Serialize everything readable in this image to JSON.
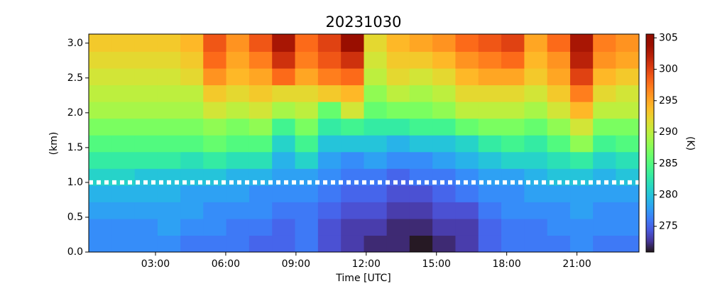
{
  "chart_data": {
    "type": "heatmap",
    "title": "20231030",
    "xlabel": "Time [UTC]",
    "ylabel": "(km)",
    "colorbar_label": "(K)",
    "colormap": "turbo",
    "x": [
      0.64,
      1.62,
      2.6,
      3.58,
      4.55,
      5.53,
      6.51,
      7.49,
      8.47,
      9.45,
      10.43,
      11.41,
      12.39,
      13.36,
      14.34,
      15.32,
      16.3,
      17.28,
      18.26,
      19.24,
      20.22,
      21.2,
      22.17,
      23.15
    ],
    "y": [
      0.12,
      0.36,
      0.6,
      0.84,
      1.08,
      1.32,
      1.56,
      1.8,
      2.04,
      2.28,
      2.52,
      2.76,
      3.0
    ],
    "z": [
      [
        277,
        277,
        277,
        277,
        276,
        276,
        276,
        275,
        275,
        276,
        274,
        273,
        272,
        272,
        271,
        272,
        273,
        275,
        276,
        276,
        276,
        277,
        276,
        276
      ],
      [
        277,
        277,
        277,
        278,
        277,
        277,
        276,
        276,
        275,
        276,
        274,
        273,
        273,
        272,
        272,
        273,
        273,
        275,
        276,
        276,
        277,
        277,
        277,
        277
      ],
      [
        278,
        278,
        278,
        278,
        278,
        277,
        277,
        277,
        276,
        276,
        275,
        274,
        274,
        273,
        273,
        274,
        274,
        276,
        277,
        277,
        277,
        278,
        277,
        277
      ],
      [
        279,
        279,
        279,
        279,
        278,
        278,
        278,
        277,
        277,
        277,
        276,
        275,
        275,
        274,
        274,
        275,
        276,
        277,
        277,
        278,
        278,
        278,
        278,
        278
      ],
      [
        281,
        281,
        280,
        280,
        280,
        280,
        279,
        279,
        278,
        278,
        277,
        276,
        276,
        275,
        276,
        276,
        277,
        278,
        278,
        279,
        280,
        280,
        279,
        280
      ],
      [
        283,
        283,
        283,
        283,
        282,
        283,
        282,
        282,
        279,
        281,
        278,
        277,
        278,
        277,
        277,
        278,
        279,
        280,
        281,
        281,
        282,
        283,
        281,
        282
      ],
      [
        285,
        285,
        285,
        285,
        285,
        286,
        285,
        285,
        281,
        284,
        280,
        280,
        280,
        279,
        280,
        280,
        281,
        283,
        284,
        283,
        285,
        288,
        284,
        285
      ],
      [
        287,
        287,
        287,
        287,
        287,
        288,
        287,
        288,
        284,
        287,
        283,
        284,
        283,
        283,
        284,
        284,
        286,
        287,
        287,
        286,
        288,
        291,
        287,
        287
      ],
      [
        289,
        289,
        289,
        289,
        289,
        291,
        290,
        291,
        289,
        290,
        286,
        291,
        286,
        287,
        287,
        288,
        290,
        290,
        290,
        289,
        291,
        294,
        290,
        290
      ],
      [
        290,
        290,
        290,
        290,
        290,
        293,
        292,
        293,
        292,
        292,
        293,
        294,
        288,
        290,
        289,
        290,
        292,
        292,
        292,
        291,
        293,
        297,
        292,
        291
      ],
      [
        291,
        291,
        291,
        291,
        292,
        296,
        294,
        295,
        298,
        295,
        297,
        298,
        290,
        292,
        291,
        292,
        294,
        295,
        295,
        293,
        295,
        300,
        294,
        293
      ],
      [
        292,
        292,
        292,
        292,
        293,
        298,
        295,
        297,
        301,
        297,
        299,
        301,
        291,
        293,
        293,
        294,
        296,
        297,
        298,
        294,
        296,
        302,
        296,
        295
      ],
      [
        293,
        293,
        293,
        293,
        294,
        299,
        296,
        299,
        303,
        298,
        300,
        304,
        292,
        294,
        295,
        296,
        298,
        299,
        300,
        295,
        298,
        303,
        297,
        296
      ]
    ],
    "xlim": [
      0.15,
      23.65
    ],
    "ylim": [
      0,
      3.13
    ],
    "zlim": [
      270.9,
      305.6
    ],
    "xticks": [
      {
        "value": 3,
        "label": "03:00"
      },
      {
        "value": 6,
        "label": "06:00"
      },
      {
        "value": 9,
        "label": "09:00"
      },
      {
        "value": 12,
        "label": "12:00"
      },
      {
        "value": 15,
        "label": "15:00"
      },
      {
        "value": 18,
        "label": "18:00"
      },
      {
        "value": 21,
        "label": "21:00"
      }
    ],
    "yticks": [
      {
        "value": 0,
        "label": "0.0"
      },
      {
        "value": 0.5,
        "label": "0.5"
      },
      {
        "value": 1,
        "label": "1.0"
      },
      {
        "value": 1.5,
        "label": "1.5"
      },
      {
        "value": 2,
        "label": "2.0"
      },
      {
        "value": 2.5,
        "label": "2.5"
      },
      {
        "value": 3,
        "label": "3.0"
      }
    ],
    "zticks": [
      275,
      280,
      285,
      290,
      295,
      300,
      305
    ],
    "hline": 1.0,
    "hline_color": "#ffffff"
  }
}
